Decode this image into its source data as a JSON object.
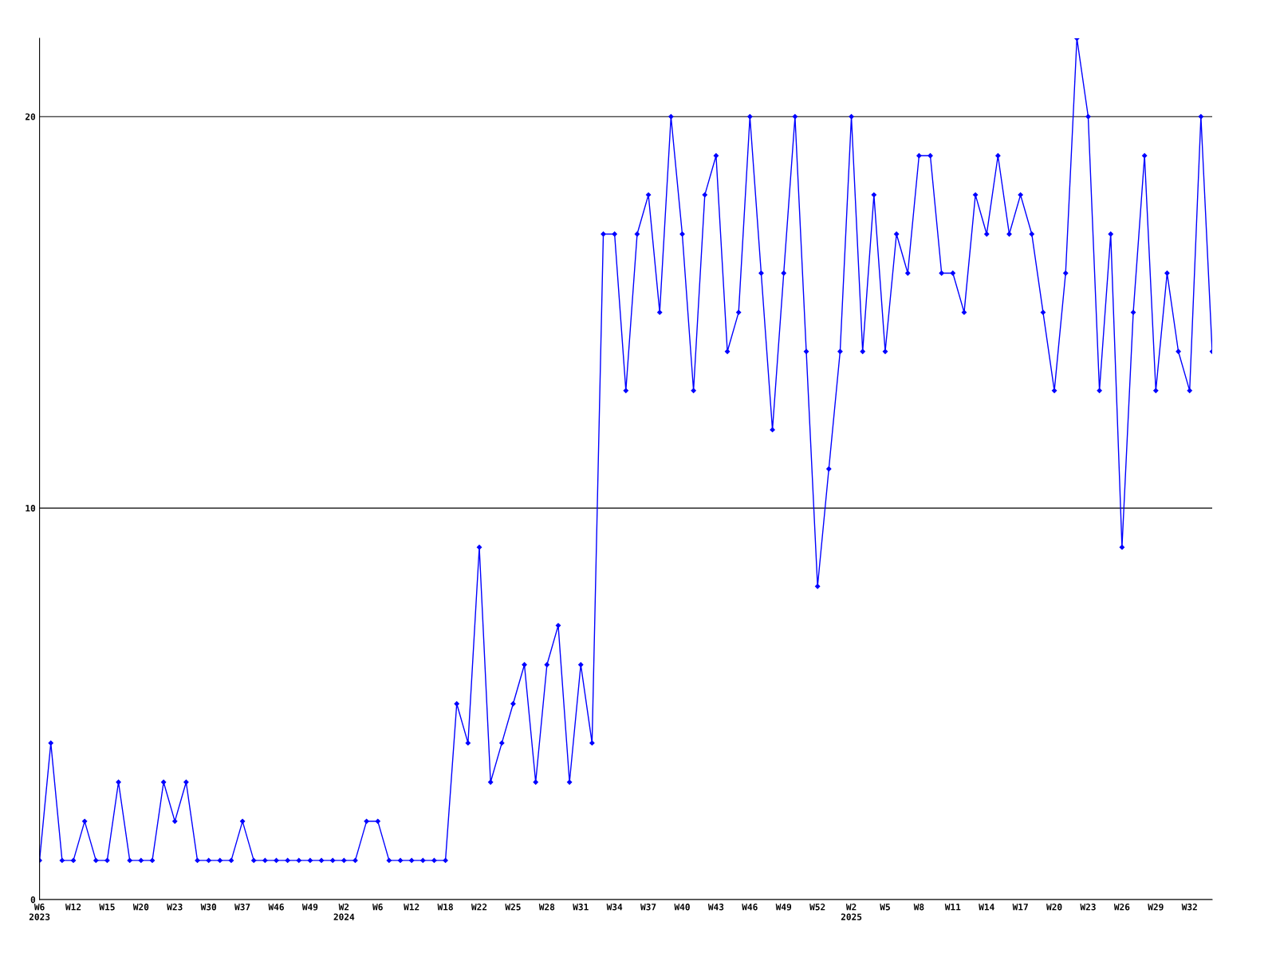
{
  "chart_data": {
    "type": "line",
    "categories": [
      "W6\n2023",
      null,
      null,
      "W12",
      null,
      null,
      "W15",
      null,
      null,
      "W20",
      null,
      null,
      "W23",
      null,
      null,
      "W30",
      null,
      null,
      "W37",
      null,
      null,
      "W46",
      null,
      null,
      "W49",
      null,
      null,
      "W2\n2024",
      null,
      null,
      "W6",
      null,
      null,
      "W12",
      null,
      null,
      "W18",
      null,
      null,
      "W22",
      null,
      null,
      "W25",
      null,
      null,
      "W28",
      null,
      null,
      "W31",
      null,
      null,
      "W34",
      null,
      null,
      "W37",
      null,
      null,
      "W40",
      null,
      null,
      "W43",
      null,
      null,
      "W46",
      null,
      null,
      "W49",
      null,
      null,
      "W52",
      null,
      null,
      "W2\n2025",
      null,
      null,
      "W5",
      null,
      null,
      "W8",
      null,
      null,
      "W11",
      null,
      null,
      "W14",
      null,
      null,
      "W17",
      null,
      null,
      "W20",
      null,
      null,
      "W23",
      null,
      null,
      "W26",
      null,
      null,
      "W29",
      null,
      null,
      "W32",
      null,
      null
    ],
    "series": [
      {
        "color": "#0000ff",
        "values": [
          1,
          4,
          1,
          1,
          2,
          1,
          1,
          3,
          1,
          1,
          1,
          3,
          2,
          3,
          1,
          1,
          1,
          1,
          2,
          1,
          1,
          1,
          1,
          1,
          1,
          1,
          1,
          1,
          1,
          2,
          2,
          1,
          1,
          1,
          1,
          1,
          1,
          5,
          4,
          9,
          3,
          4,
          5,
          6,
          3,
          6,
          7,
          3,
          6,
          4,
          17,
          17,
          13,
          17,
          18,
          15,
          20,
          17,
          13,
          18,
          19,
          14,
          15,
          20,
          16,
          12,
          16,
          20,
          14,
          8,
          11,
          14,
          20,
          14,
          18,
          14,
          17,
          16,
          19,
          19,
          16,
          16,
          15,
          18,
          17,
          19,
          17,
          18,
          17,
          15,
          13,
          16,
          22,
          20,
          13,
          17,
          9,
          15,
          19,
          13,
          16,
          14,
          13,
          20,
          14
        ]
      }
    ],
    "ylim": [
      0,
      22
    ],
    "yticks": [
      0,
      10,
      20
    ],
    "grid": "y",
    "marker": "diamond",
    "line_style": "solid"
  }
}
